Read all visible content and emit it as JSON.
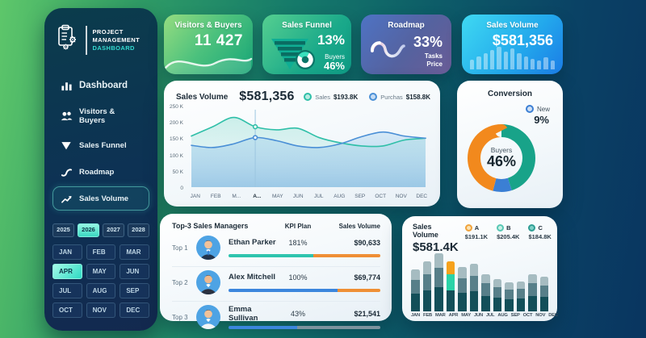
{
  "colors": {
    "accent_teal": "#2fbfa8",
    "accent_blue": "#4a8fd6",
    "accent_orange": "#f2891d",
    "selected_month_bg": "#2ed9c3",
    "sidebar_bg_top": "#0b3c4c",
    "sidebar_bg_bottom": "#13294f"
  },
  "sidebar": {
    "logo": {
      "line1": "PROJECT",
      "line2": "MANAGEMENT",
      "line3": "DASHBOARD"
    },
    "menu": [
      {
        "label": "Dashboard",
        "icon": "bar-chart-icon",
        "active": false
      },
      {
        "label": "Visitors & Buyers",
        "icon": "users-icon",
        "active": false
      },
      {
        "label": "Sales Funnel",
        "icon": "funnel-icon",
        "active": false
      },
      {
        "label": "Roadmap",
        "icon": "roadmap-curve-icon",
        "active": false
      },
      {
        "label": "Sales Volume",
        "icon": "trend-line-icon",
        "active": true
      }
    ],
    "years": [
      {
        "label": "2025",
        "selected": false
      },
      {
        "label": "2026",
        "selected": true
      },
      {
        "label": "2027",
        "selected": false
      },
      {
        "label": "2028",
        "selected": false
      }
    ],
    "months": [
      {
        "label": "JAN",
        "selected": false
      },
      {
        "label": "FEB",
        "selected": false
      },
      {
        "label": "MAR",
        "selected": false
      },
      {
        "label": "APR",
        "selected": true
      },
      {
        "label": "MAY",
        "selected": false
      },
      {
        "label": "JUN",
        "selected": false
      },
      {
        "label": "JUL",
        "selected": false
      },
      {
        "label": "AUG",
        "selected": false
      },
      {
        "label": "SEP",
        "selected": false
      },
      {
        "label": "OCT",
        "selected": false
      },
      {
        "label": "NOV",
        "selected": false
      },
      {
        "label": "DEC",
        "selected": false
      }
    ]
  },
  "kpi_cards": [
    {
      "title": "Visitors & Buyers",
      "value": "11 427"
    },
    {
      "title": "Sales Funnel",
      "value": "13%",
      "sub_label": "Buyers",
      "sub_value": "46%"
    },
    {
      "title": "Roadmap",
      "value": "33%",
      "sub_lines": [
        "Tasks",
        "Price"
      ]
    },
    {
      "title": "Sales Volume",
      "value": "$581,356"
    }
  ],
  "main_chart": {
    "title": "Sales Volume",
    "value": "$581,356",
    "legend": [
      {
        "label": "Sales",
        "value": "$193.8K",
        "color": "#2fbfa8",
        "fill": "#b9ece2"
      },
      {
        "label": "Purchas",
        "value": "$158.8K",
        "color": "#4a8fd6",
        "fill": "#c6dcf4"
      }
    ]
  },
  "conversion": {
    "title": "Conversion",
    "legend": {
      "label": "New",
      "value": "9%",
      "color": "#3b7fd4",
      "fill": "#cfe0f5"
    },
    "center_label": "Buyers",
    "center_value": "46%"
  },
  "managers": {
    "title": "Top-3 Sales Managers",
    "columns": [
      "KPI Plan",
      "Sales Volume"
    ]
  },
  "volume_bars": {
    "title": "Sales Volume",
    "value": "$581.4K",
    "legend": [
      {
        "label": "A",
        "value": "$191.1K",
        "color": "#f0a23c",
        "fill": "#fbe2b2"
      },
      {
        "label": "B",
        "value": "$205.4K",
        "color": "#57c7b4",
        "fill": "#c9f0e6"
      },
      {
        "label": "C",
        "value": "$184.8K",
        "color": "#2f9e94",
        "fill": "#7fd0c6"
      }
    ]
  },
  "chart_data": [
    {
      "id": "sales_volume_area",
      "type": "area",
      "title": "Sales Volume",
      "x": [
        "JAN",
        "FEB",
        "M...",
        "A...",
        "MAY",
        "JUN",
        "JUL",
        "AUG",
        "SEP",
        "OCT",
        "NOV",
        "DEC"
      ],
      "highlight_index": 3,
      "ylabel": "",
      "ylim": [
        0,
        250
      ],
      "yticks": [
        "250 K",
        "200 K",
        "150 K",
        "100 K",
        "50 K",
        "0"
      ],
      "legend_position": "top-right",
      "grid": false,
      "series": [
        {
          "name": "Sales",
          "color": "#2fbfa8",
          "area": "gradTeal",
          "values": [
            165,
            195,
            225,
            195,
            185,
            190,
            160,
            143,
            133,
            133,
            152,
            158
          ]
        },
        {
          "name": "Purchas",
          "color": "#4a8fd6",
          "area": "gradBlue",
          "values": [
            135,
            128,
            140,
            160,
            150,
            133,
            128,
            140,
            163,
            178,
            165,
            158
          ]
        }
      ]
    },
    {
      "id": "conversion_donut",
      "type": "pie",
      "title": "Conversion",
      "slices": [
        {
          "label": "",
          "value": 45,
          "color": "#18a389"
        },
        {
          "label": "New",
          "value": 9,
          "color": "#3b7fd4"
        },
        {
          "label": "Buyers",
          "value": 46,
          "color": "#f2891d"
        }
      ],
      "center_label": "Buyers",
      "center_value": "46%"
    },
    {
      "id": "top_sales_managers",
      "type": "table",
      "rows": [
        {
          "rank": "Top 1",
          "name": "Ethan Parker",
          "kpi": "181%",
          "volume": "$90,633",
          "bar": [
            {
              "pct": 56,
              "color": "#2ec4ae"
            },
            {
              "pct": 44,
              "color": "#ef8f35"
            }
          ],
          "avatar": {
            "suit": "#23344d",
            "hair": "#38291f",
            "skin": "#f2c29a",
            "tie": "#2e77d0"
          }
        },
        {
          "rank": "Top 2",
          "name": "Alex Mitchell",
          "kpi": "100%",
          "volume": "$69,774",
          "bar": [
            {
              "pct": 72,
              "color": "#3c86dd"
            },
            {
              "pct": 28,
              "color": "#ef8f35"
            }
          ],
          "avatar": {
            "suit": "#2a3140",
            "hair": "#241a14",
            "skin": "#eeb88d",
            "tie": ""
          }
        },
        {
          "rank": "Top 3",
          "name": "Emma Sullivan",
          "kpi": "43%",
          "volume": "$21,541",
          "bar": [
            {
              "pct": 45,
              "color": "#3c86dd"
            },
            {
              "pct": 55,
              "color": "#7d939e"
            }
          ],
          "avatar": {
            "suit": "#f2f5f7",
            "hair": "#33261d",
            "skin": "#f2c29a",
            "tie": ""
          }
        }
      ]
    },
    {
      "id": "monthly_stacked_bars",
      "type": "bar",
      "categories": [
        "JAN",
        "FEB",
        "MAR",
        "APR",
        "MAY",
        "JUN",
        "JUL",
        "AUG",
        "SEP",
        "OCT",
        "NOV",
        "DEC"
      ],
      "totals_pct": [
        72,
        86,
        100,
        86,
        76,
        82,
        64,
        56,
        50,
        52,
        64,
        60
      ],
      "segment_fractions": [
        0.42,
        0.33,
        0.25
      ],
      "segment_colors": [
        "#134f59",
        "#577f89",
        "#a6bcc1"
      ],
      "highlight": {
        "index": 3,
        "colors": [
          "#134f59",
          "#2bd3a8",
          "#f6a21c"
        ]
      }
    }
  ]
}
